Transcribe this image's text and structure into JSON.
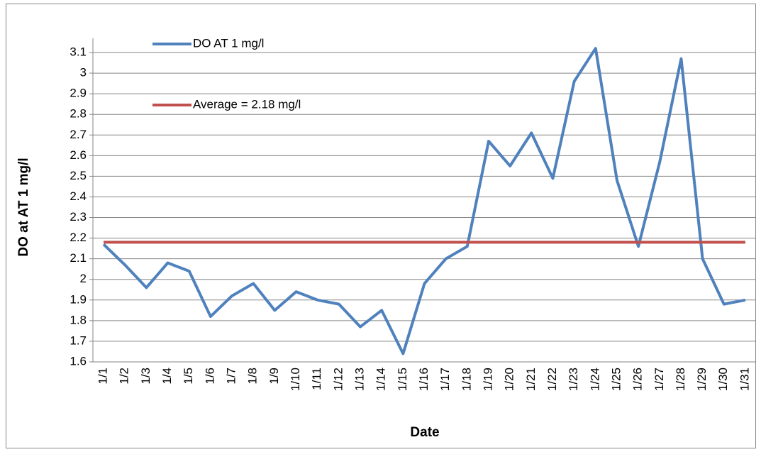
{
  "chart_data": {
    "type": "line",
    "x_label": "Date",
    "y_label": "DO at AT 1 mg/l",
    "categories": [
      "1/1",
      "1/2",
      "1/3",
      "1/4",
      "1/5",
      "1/6",
      "1/7",
      "1/8",
      "1/9",
      "1/10",
      "1/11",
      "1/12",
      "1/13",
      "1/14",
      "1/15",
      "1/16",
      "1/17",
      "1/18",
      "1/19",
      "1/20",
      "1/21",
      "1/22",
      "1/23",
      "1/24",
      "1/25",
      "1/26",
      "1/27",
      "1/28",
      "1/29",
      "1/30",
      "1/31"
    ],
    "series": [
      {
        "name": "DO AT 1 mg/l",
        "color": "#4f81bd",
        "values": [
          2.17,
          2.07,
          1.96,
          2.08,
          2.04,
          1.82,
          1.92,
          1.98,
          1.85,
          1.94,
          1.9,
          1.88,
          1.77,
          1.85,
          1.64,
          1.98,
          2.1,
          2.16,
          2.67,
          2.55,
          2.71,
          2.49,
          2.96,
          3.12,
          2.48,
          2.16,
          2.57,
          3.07,
          2.1,
          1.88,
          1.9
        ]
      },
      {
        "name": "Average = 2.18 mg/l",
        "color": "#c0504d",
        "values": [
          2.18,
          2.18,
          2.18,
          2.18,
          2.18,
          2.18,
          2.18,
          2.18,
          2.18,
          2.18,
          2.18,
          2.18,
          2.18,
          2.18,
          2.18,
          2.18,
          2.18,
          2.18,
          2.18,
          2.18,
          2.18,
          2.18,
          2.18,
          2.18,
          2.18,
          2.18,
          2.18,
          2.18,
          2.18,
          2.18,
          2.18
        ]
      }
    ],
    "ylim": [
      1.6,
      3.1
    ],
    "yticks": [
      1.6,
      1.7,
      1.8,
      1.9,
      2,
      2.1,
      2.2,
      2.3,
      2.4,
      2.5,
      2.6,
      2.7,
      2.8,
      2.9,
      3,
      3.1
    ],
    "grid": true,
    "legend": "top-left"
  }
}
